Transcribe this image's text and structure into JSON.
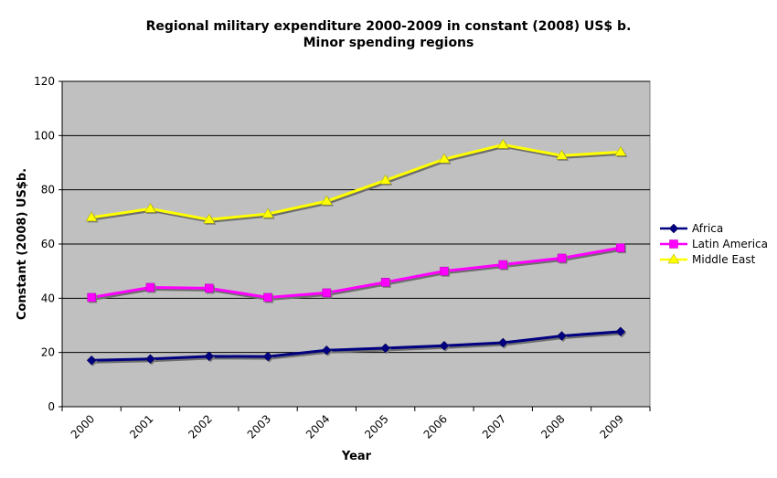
{
  "chart_data": {
    "type": "line",
    "title": "Regional military expenditure 2000-2009 in constant (2008) US$ b.",
    "subtitle": "Minor spending regions",
    "xlabel": "Year",
    "ylabel": "Constant (2008) US$b.",
    "x": [
      "2000",
      "2001",
      "2002",
      "2003",
      "2004",
      "2005",
      "2006",
      "2007",
      "2008",
      "2009"
    ],
    "ylim": [
      0,
      120
    ],
    "yticks": [
      0,
      20,
      40,
      60,
      80,
      100,
      120
    ],
    "grid": true,
    "legend_position": "right",
    "background_color": "#C0C0C0",
    "series": [
      {
        "name": "Africa",
        "color": "#000080",
        "marker": "diamond",
        "values": [
          17.1,
          17.6,
          18.6,
          18.5,
          20.8,
          21.6,
          22.5,
          23.6,
          26.1,
          27.7
        ]
      },
      {
        "name": "Latin America",
        "color": "#FF00FF",
        "marker": "square",
        "values": [
          40.3,
          44.0,
          43.7,
          40.3,
          42.0,
          45.9,
          50.0,
          52.4,
          54.8,
          58.6
        ]
      },
      {
        "name": "Middle East",
        "color": "#FFFF00",
        "marker": "triangle",
        "values": [
          69.8,
          73.0,
          69.0,
          71.1,
          75.8,
          83.5,
          91.3,
          96.6,
          92.6,
          93.9
        ]
      }
    ]
  }
}
